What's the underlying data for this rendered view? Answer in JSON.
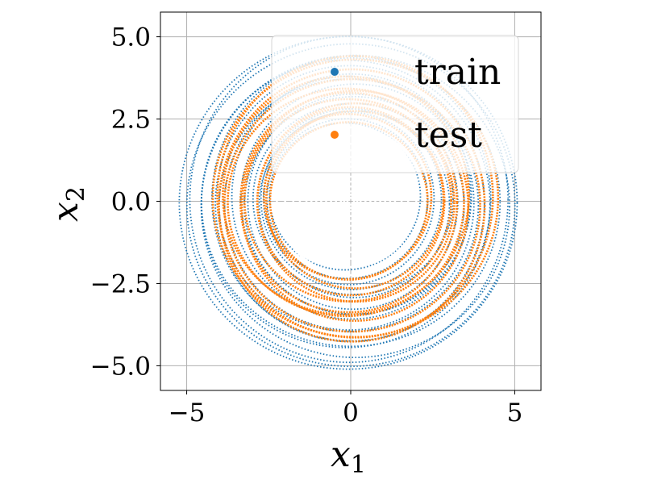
{
  "chart_data": {
    "type": "scatter",
    "title": "",
    "xlabel": "x",
    "xlabel_sub": "1",
    "ylabel": "x",
    "ylabel_sub": "2",
    "xlim": [
      -5.8,
      5.8
    ],
    "ylim": [
      -5.75,
      5.75
    ],
    "xticks": [
      -5,
      0,
      5
    ],
    "xtick_labels": [
      "−5",
      "0",
      "5"
    ],
    "yticks": [
      5.0,
      2.5,
      0.0,
      -2.5,
      -5.0
    ],
    "ytick_labels": [
      "5.0",
      "2.5",
      "0.0",
      "−2.5",
      "−5.0"
    ],
    "grid": true,
    "legend_position": "top-right",
    "series": [
      {
        "name": "train",
        "color": "#1f77b4",
        "description_of_shape": "spiral rings around origin",
        "ring_radii": [
          2.3,
          2.45,
          2.6,
          2.75,
          2.9,
          3.05,
          3.2,
          3.35,
          3.5,
          3.65,
          3.8,
          3.95,
          4.1,
          4.25,
          4.4,
          4.55,
          4.7,
          4.85,
          5.0,
          5.15
        ],
        "center": [
          0,
          0
        ]
      },
      {
        "name": "test",
        "color": "#ff7f0e",
        "ring_radii": [
          2.4,
          2.55,
          2.7,
          2.85,
          3.0,
          3.15,
          3.3,
          3.45,
          3.6,
          3.75,
          3.9,
          4.05,
          4.2,
          4.35
        ],
        "center": [
          0,
          0
        ]
      }
    ]
  }
}
